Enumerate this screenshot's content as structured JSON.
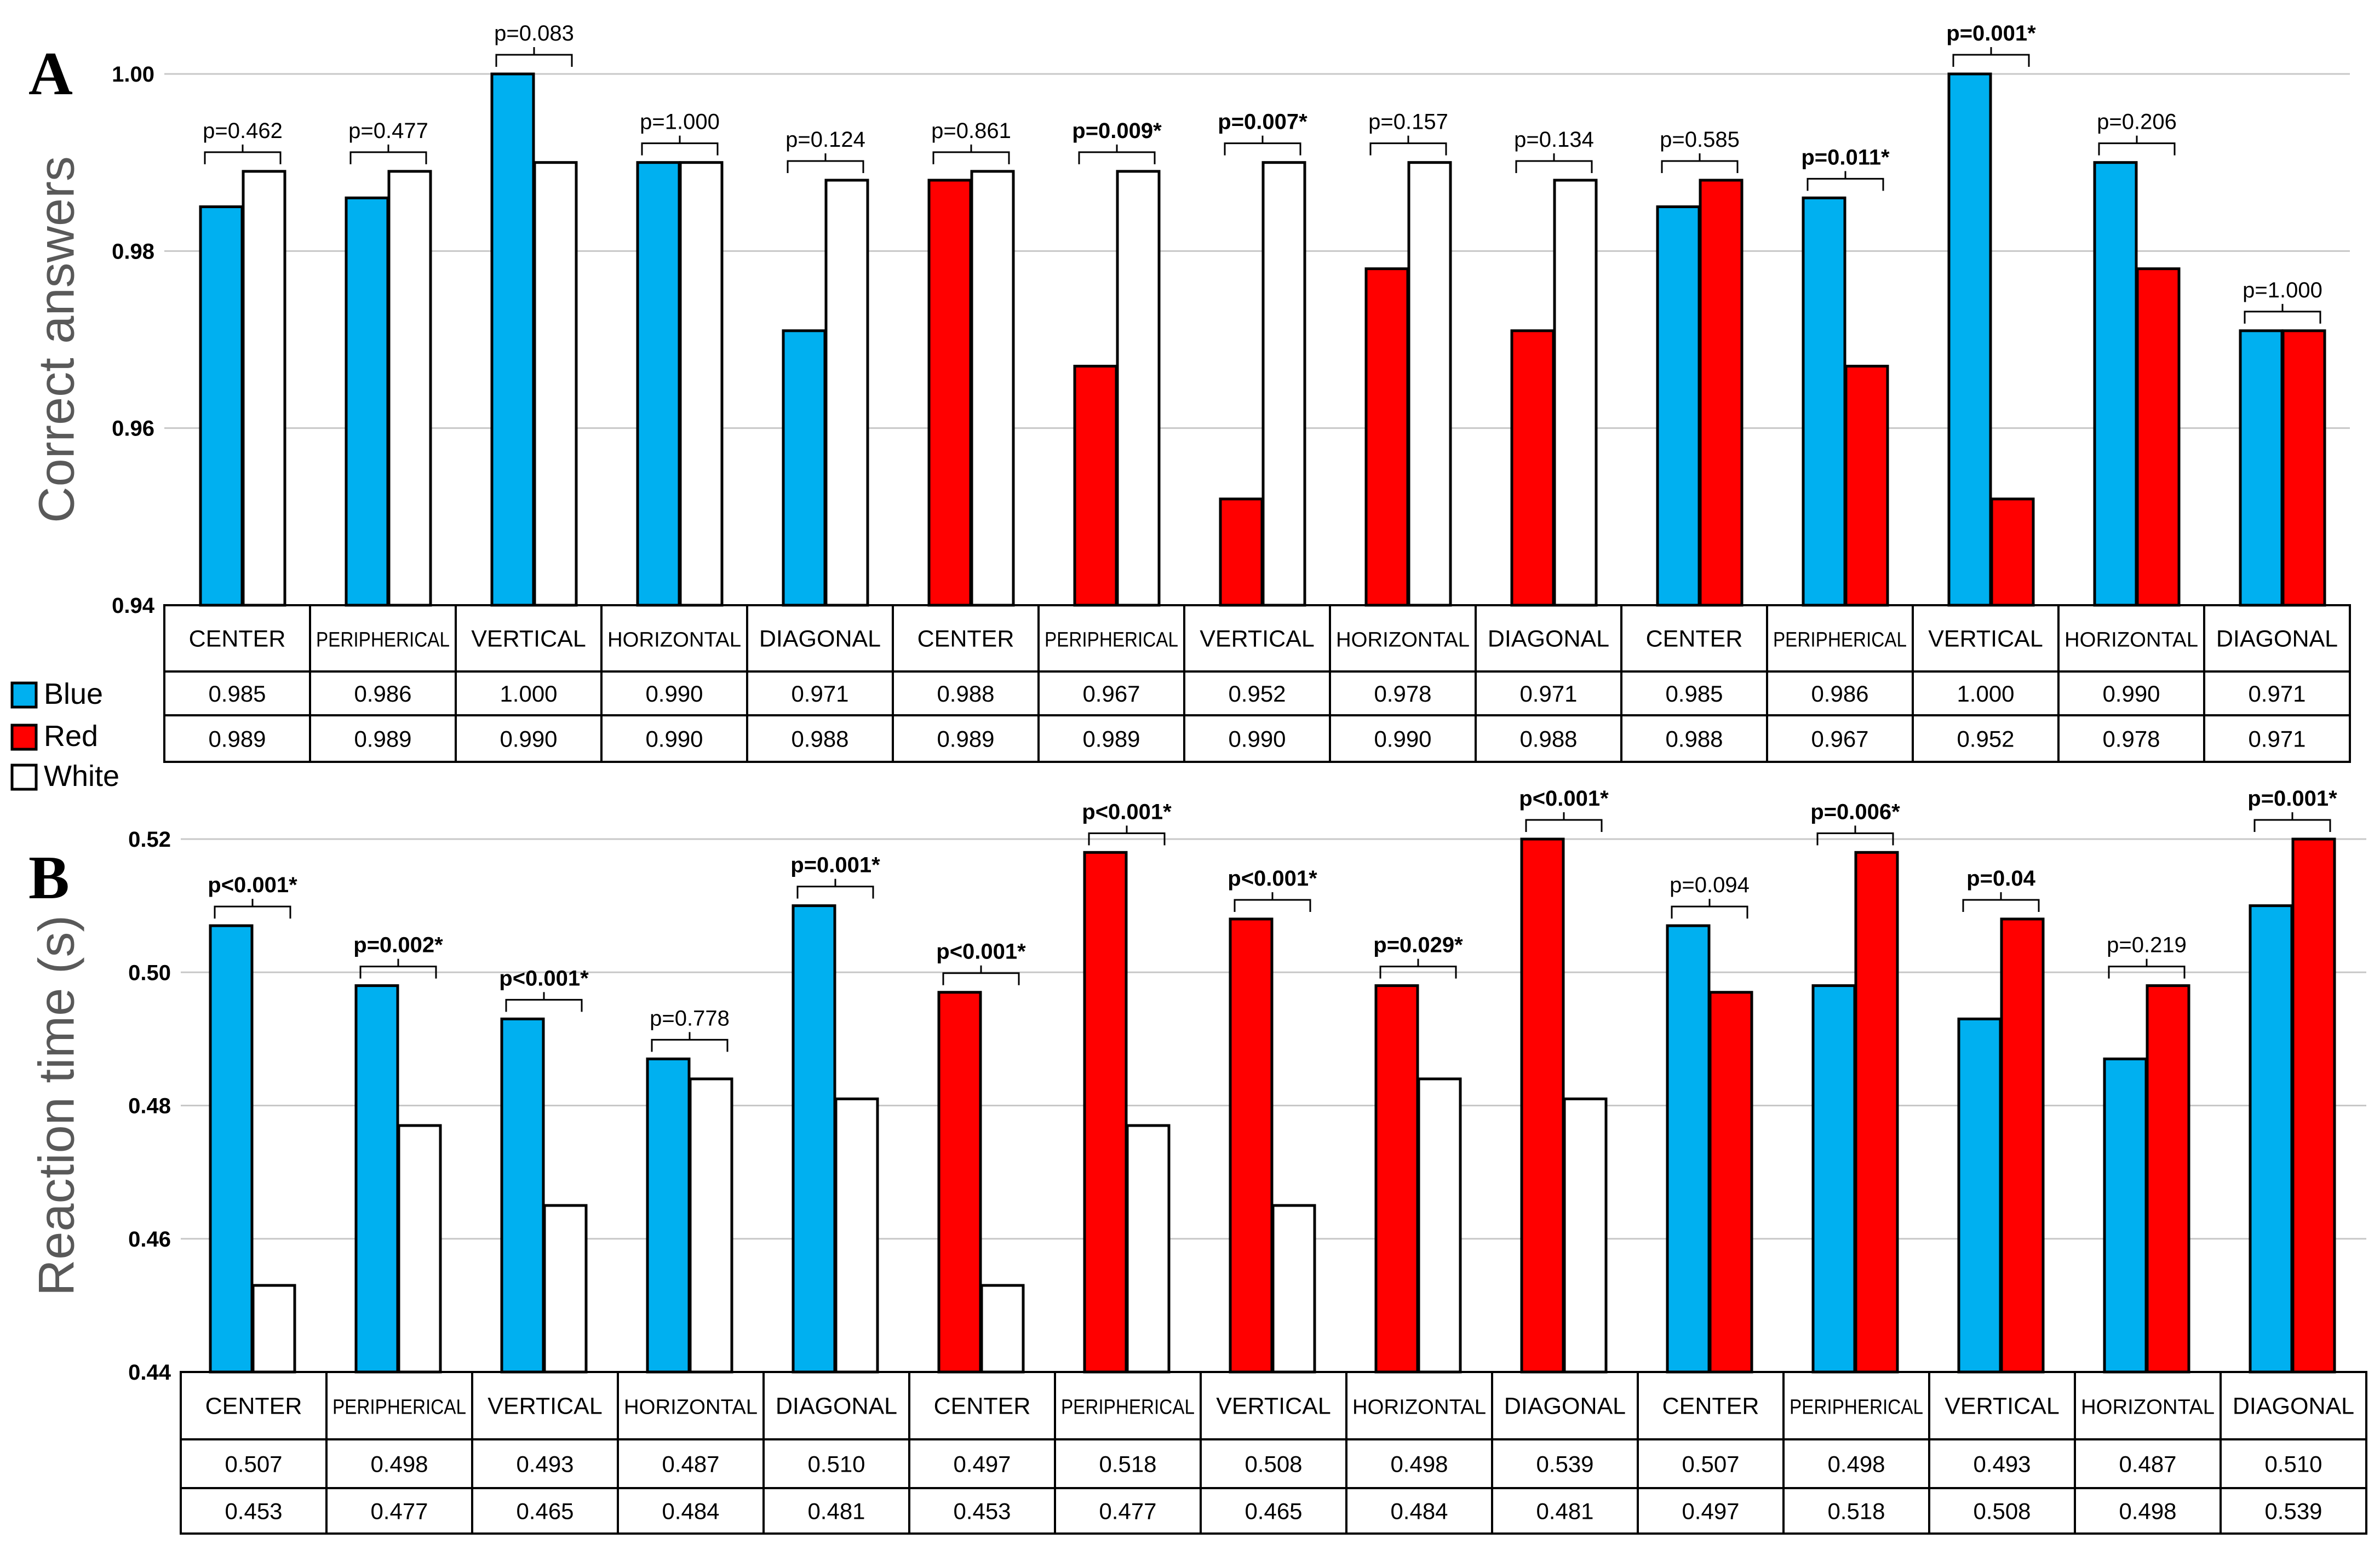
{
  "colors": {
    "Blue": "#00b0f0",
    "Red": "#ff0000",
    "White": "#ffffff"
  },
  "legend": [
    {
      "label": "Blue",
      "color": "#00b0f0"
    },
    {
      "label": "Red",
      "color": "#ff0000"
    },
    {
      "label": "White",
      "color": "#ffffff"
    }
  ],
  "chart_data": [
    {
      "type": "bar",
      "panel": "A",
      "ylabel": "Correct answers",
      "ylim": [
        0.94,
        1.0
      ],
      "yticks": [
        "0.94",
        "0.96",
        "0.98",
        "1.00"
      ],
      "ytick_values": [
        0.94,
        0.96,
        0.98,
        1.0
      ],
      "grid": true,
      "categories": [
        "CENTER",
        "PERIPHERICAL",
        "VERTICAL",
        "HORIZONTAL",
        "DIAGONAL",
        "CENTER",
        "PERIPHERICAL",
        "VERTICAL",
        "HORIZONTAL",
        "DIAGONAL",
        "CENTER",
        "PERIPHERICAL",
        "VERTICAL",
        "HORIZONTAL",
        "DIAGONAL"
      ],
      "pairs": [
        [
          "Blue",
          "White"
        ],
        [
          "Blue",
          "White"
        ],
        [
          "Blue",
          "White"
        ],
        [
          "Blue",
          "White"
        ],
        [
          "Blue",
          "White"
        ],
        [
          "Red",
          "White"
        ],
        [
          "Red",
          "White"
        ],
        [
          "Red",
          "White"
        ],
        [
          "Red",
          "White"
        ],
        [
          "Red",
          "White"
        ],
        [
          "Blue",
          "Red"
        ],
        [
          "Blue",
          "Red"
        ],
        [
          "Blue",
          "Red"
        ],
        [
          "Blue",
          "Red"
        ],
        [
          "Blue",
          "Red"
        ]
      ],
      "row1_values": [
        "0.985",
        "0.986",
        "1.000",
        "0.990",
        "0.971",
        "0.988",
        "0.967",
        "0.952",
        "0.978",
        "0.971",
        "0.985",
        "0.986",
        "1.000",
        "0.990",
        "0.971"
      ],
      "row2_values": [
        "0.989",
        "0.989",
        "0.990",
        "0.990",
        "0.988",
        "0.989",
        "0.989",
        "0.990",
        "0.990",
        "0.988",
        "0.988",
        "0.967",
        "0.952",
        "0.978",
        "0.971"
      ],
      "p_values": [
        "p=0.462",
        "p=0.477",
        "p=0.083",
        "p=1.000",
        "p=0.124",
        "p=0.861",
        "p=0.009*",
        "p=0.007*",
        "p=0.157",
        "p=0.134",
        "p=0.585",
        "p=0.011*",
        "p=0.001*",
        "p=0.206",
        "p=1.000"
      ],
      "p_significant": [
        false,
        false,
        false,
        false,
        false,
        false,
        true,
        true,
        false,
        false,
        false,
        true,
        true,
        false,
        false
      ]
    },
    {
      "type": "bar",
      "panel": "B",
      "ylabel": "Reaction time (s)",
      "ylim": [
        0.44,
        0.52
      ],
      "yticks": [
        "0.44",
        "0.46",
        "0.48",
        "0.50",
        "0.52"
      ],
      "ytick_values": [
        0.44,
        0.46,
        0.48,
        0.5,
        0.52
      ],
      "grid": true,
      "categories": [
        "CENTER",
        "PERIPHERICAL",
        "VERTICAL",
        "HORIZONTAL",
        "DIAGONAL",
        "CENTER",
        "PERIPHERICAL",
        "VERTICAL",
        "HORIZONTAL",
        "DIAGONAL",
        "CENTER",
        "PERIPHERICAL",
        "VERTICAL",
        "HORIZONTAL",
        "DIAGONAL"
      ],
      "pairs": [
        [
          "Blue",
          "White"
        ],
        [
          "Blue",
          "White"
        ],
        [
          "Blue",
          "White"
        ],
        [
          "Blue",
          "White"
        ],
        [
          "Blue",
          "White"
        ],
        [
          "Red",
          "White"
        ],
        [
          "Red",
          "White"
        ],
        [
          "Red",
          "White"
        ],
        [
          "Red",
          "White"
        ],
        [
          "Red",
          "White"
        ],
        [
          "Blue",
          "Red"
        ],
        [
          "Blue",
          "Red"
        ],
        [
          "Blue",
          "Red"
        ],
        [
          "Blue",
          "Red"
        ],
        [
          "Blue",
          "Red"
        ]
      ],
      "row1_values": [
        "0.507",
        "0.498",
        "0.493",
        "0.487",
        "0.510",
        "0.497",
        "0.518",
        "0.508",
        "0.498",
        "0.539",
        "0.507",
        "0.498",
        "0.493",
        "0.487",
        "0.510"
      ],
      "row2_values": [
        "0.453",
        "0.477",
        "0.465",
        "0.484",
        "0.481",
        "0.453",
        "0.477",
        "0.465",
        "0.484",
        "0.481",
        "0.497",
        "0.518",
        "0.508",
        "0.498",
        "0.539"
      ],
      "p_values": [
        "p<0.001*",
        "p=0.002*",
        "p<0.001*",
        "p=0.778",
        "p=0.001*",
        "p<0.001*",
        "p<0.001*",
        "p<0.001*",
        "p=0.029*",
        "p<0.001*",
        "p=0.094",
        "p=0.006*",
        "p=0.04",
        "p=0.219",
        "p=0.001*"
      ],
      "p_significant": [
        true,
        true,
        true,
        false,
        true,
        true,
        true,
        true,
        true,
        true,
        false,
        true,
        true,
        false,
        true
      ]
    }
  ]
}
